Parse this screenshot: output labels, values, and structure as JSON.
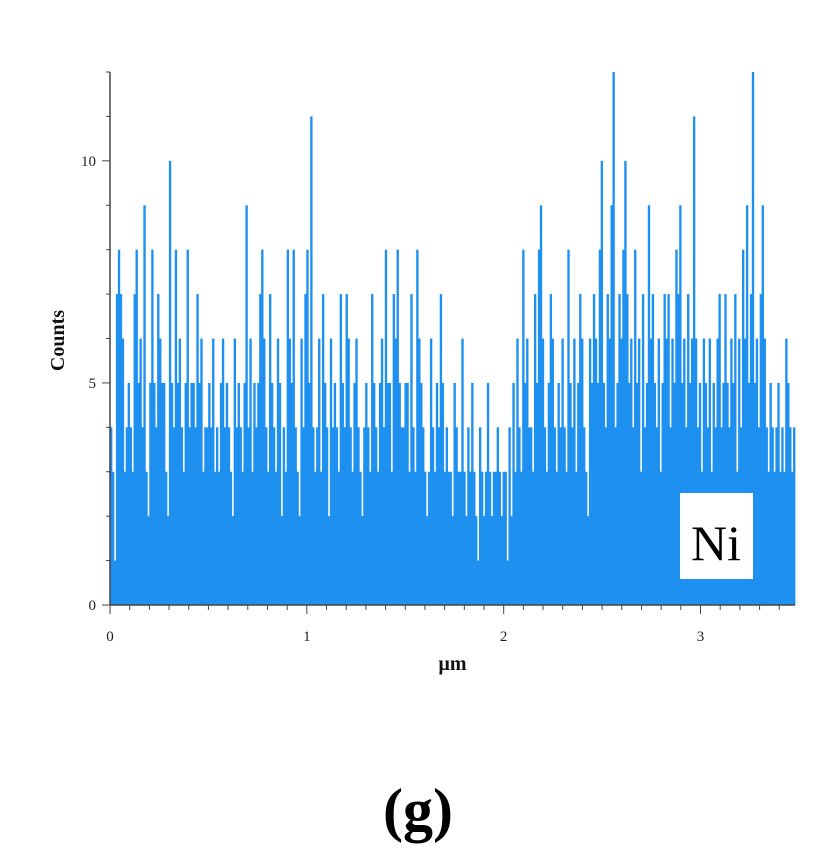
{
  "panel_label": "(g)",
  "chart_data": {
    "type": "bar",
    "xlabel": "µm",
    "ylabel": "Counts",
    "element_label": "Ni",
    "xlim": [
      0,
      3.48
    ],
    "ylim": [
      0,
      12
    ],
    "x_ticks": [
      0,
      1,
      2,
      3
    ],
    "y_ticks": [
      0,
      5,
      10
    ],
    "bar_color": "#1e90f0",
    "label_box_color": "#ffffff",
    "x_start": 0,
    "x_step": 0.01,
    "values": [
      4,
      3,
      1,
      7,
      8,
      7,
      6,
      3,
      4,
      5,
      4,
      3,
      7,
      8,
      5,
      6,
      4,
      9,
      3,
      2,
      5,
      8,
      5,
      4,
      7,
      6,
      5,
      5,
      3,
      2,
      10,
      5,
      4,
      8,
      5,
      6,
      4,
      3,
      5,
      8,
      4,
      5,
      5,
      4,
      7,
      5,
      6,
      3,
      4,
      4,
      5,
      4,
      6,
      3,
      4,
      3,
      5,
      6,
      4,
      5,
      4,
      3,
      2,
      6,
      4,
      5,
      4,
      3,
      5,
      9,
      4,
      6,
      3,
      5,
      4,
      5,
      7,
      8,
      6,
      4,
      3,
      7,
      5,
      4,
      3,
      6,
      5,
      2,
      4,
      3,
      8,
      6,
      5,
      8,
      4,
      3,
      2,
      6,
      4,
      7,
      8,
      5,
      11,
      4,
      3,
      4,
      6,
      3,
      7,
      5,
      4,
      2,
      6,
      4,
      5,
      4,
      3,
      7,
      5,
      4,
      7,
      6,
      4,
      3,
      5,
      6,
      4,
      3,
      2,
      4,
      5,
      4,
      3,
      7,
      5,
      4,
      3,
      5,
      6,
      4,
      8,
      5,
      5,
      3,
      7,
      6,
      8,
      5,
      4,
      4,
      5,
      5,
      3,
      7,
      4,
      3,
      8,
      6,
      5,
      4,
      3,
      2,
      3,
      6,
      4,
      3,
      5,
      4,
      7,
      5,
      3,
      4,
      3,
      3,
      2,
      5,
      4,
      3,
      3,
      6,
      3,
      2,
      4,
      3,
      5,
      3,
      2,
      1,
      4,
      3,
      2,
      3,
      5,
      3,
      2,
      3,
      3,
      4,
      3,
      2,
      3,
      3,
      1,
      4,
      2,
      5,
      3,
      6,
      4,
      3,
      8,
      5,
      6,
      4,
      4,
      3,
      7,
      5,
      8,
      9,
      6,
      4,
      3,
      5,
      7,
      6,
      4,
      3,
      5,
      4,
      6,
      4,
      3,
      8,
      5,
      4,
      6,
      3,
      5,
      7,
      6,
      4,
      3,
      2,
      6,
      5,
      7,
      6,
      5,
      8,
      10,
      5,
      4,
      7,
      6,
      9,
      12,
      4,
      5,
      7,
      6,
      8,
      10,
      7,
      5,
      6,
      4,
      8,
      5,
      6,
      3,
      7,
      4,
      5,
      9,
      6,
      7,
      5,
      4,
      6,
      3,
      5,
      7,
      6,
      7,
      4,
      6,
      5,
      8,
      7,
      9,
      5,
      6,
      4,
      7,
      5,
      6,
      11,
      6,
      4,
      5,
      3,
      6,
      5,
      4,
      6,
      3,
      5,
      4,
      6,
      7,
      4,
      5,
      7,
      5,
      4,
      6,
      5,
      7,
      3,
      6,
      4,
      8,
      6,
      9,
      5,
      7,
      12,
      5,
      6,
      4,
      7,
      9,
      6,
      4,
      3,
      5,
      4,
      3,
      4,
      5,
      3,
      4,
      3,
      6,
      5,
      4,
      3,
      4
    ]
  }
}
